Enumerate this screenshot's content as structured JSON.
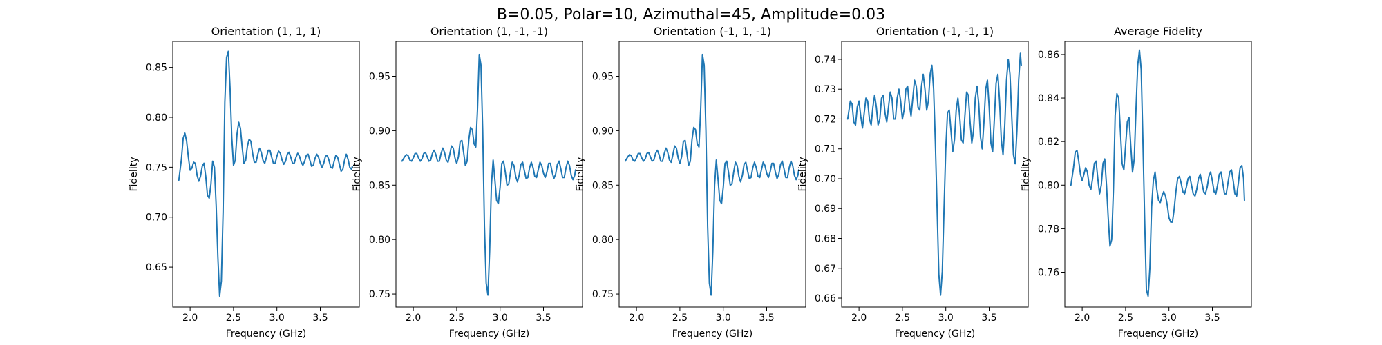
{
  "figure": {
    "suptitle": "B=0.05, Polar=10, Azimuthal=45, Amplitude=0.03"
  },
  "chart_data": [
    {
      "type": "line",
      "title": "Orientation (1, 1, 1)",
      "xlabel": "Frequency (GHz)",
      "ylabel": "Fidelity",
      "xlim": [
        1.8,
        3.95
      ],
      "ylim": [
        0.61,
        0.876
      ],
      "xticks": [
        "2.0",
        "2.5",
        "3.0",
        "3.5"
      ],
      "yticks": [
        "0.65",
        "0.70",
        "0.75",
        "0.80",
        "0.85"
      ],
      "color": "#1f77b4",
      "x": [
        1.87,
        1.9,
        1.92,
        1.94,
        1.96,
        1.98,
        2.0,
        2.02,
        2.04,
        2.06,
        2.08,
        2.1,
        2.12,
        2.14,
        2.16,
        2.18,
        2.2,
        2.22,
        2.24,
        2.26,
        2.28,
        2.3,
        2.32,
        2.34,
        2.36,
        2.38,
        2.4,
        2.42,
        2.44,
        2.46,
        2.48,
        2.5,
        2.52,
        2.54,
        2.56,
        2.58,
        2.6,
        2.62,
        2.64,
        2.66,
        2.68,
        2.7,
        2.72,
        2.74,
        2.76,
        2.78,
        2.8,
        2.82,
        2.84,
        2.86,
        2.88,
        2.9,
        2.92,
        2.94,
        2.96,
        2.98,
        3.0,
        3.02,
        3.04,
        3.06,
        3.08,
        3.1,
        3.12,
        3.14,
        3.16,
        3.18,
        3.2,
        3.22,
        3.24,
        3.26,
        3.28,
        3.3,
        3.32,
        3.34,
        3.36,
        3.38,
        3.4,
        3.42,
        3.44,
        3.46,
        3.48,
        3.5,
        3.52,
        3.54,
        3.56,
        3.58,
        3.6,
        3.62,
        3.64,
        3.66,
        3.68,
        3.7,
        3.72,
        3.74,
        3.76,
        3.78,
        3.8,
        3.82,
        3.84,
        3.86,
        3.87
      ],
      "y": [
        0.737,
        0.758,
        0.779,
        0.784,
        0.776,
        0.76,
        0.747,
        0.749,
        0.755,
        0.754,
        0.742,
        0.736,
        0.741,
        0.751,
        0.754,
        0.741,
        0.722,
        0.719,
        0.733,
        0.756,
        0.75,
        0.712,
        0.66,
        0.621,
        0.636,
        0.705,
        0.815,
        0.86,
        0.866,
        0.83,
        0.78,
        0.752,
        0.757,
        0.783,
        0.795,
        0.789,
        0.77,
        0.754,
        0.757,
        0.771,
        0.778,
        0.776,
        0.764,
        0.755,
        0.755,
        0.763,
        0.769,
        0.765,
        0.757,
        0.754,
        0.76,
        0.767,
        0.767,
        0.76,
        0.754,
        0.754,
        0.761,
        0.766,
        0.764,
        0.757,
        0.753,
        0.756,
        0.763,
        0.765,
        0.76,
        0.754,
        0.754,
        0.76,
        0.764,
        0.761,
        0.755,
        0.752,
        0.756,
        0.762,
        0.763,
        0.757,
        0.751,
        0.752,
        0.759,
        0.763,
        0.76,
        0.754,
        0.75,
        0.754,
        0.761,
        0.762,
        0.757,
        0.75,
        0.749,
        0.756,
        0.762,
        0.76,
        0.753,
        0.746,
        0.748,
        0.757,
        0.763,
        0.758,
        0.75,
        0.748,
        0.751
      ]
    },
    {
      "type": "line",
      "title": "Orientation (1, -1, -1)",
      "xlabel": "Frequency (GHz)",
      "ylabel": "Fidelity",
      "xlim": [
        1.8,
        3.95
      ],
      "ylim": [
        0.738,
        0.982
      ],
      "xticks": [
        "2.0",
        "2.5",
        "3.0",
        "3.5"
      ],
      "yticks": [
        "0.75",
        "0.80",
        "0.85",
        "0.90",
        "0.95"
      ],
      "color": "#1f77b4",
      "x": [
        1.87,
        1.9,
        1.92,
        1.94,
        1.96,
        1.98,
        2.0,
        2.02,
        2.04,
        2.06,
        2.08,
        2.1,
        2.12,
        2.14,
        2.16,
        2.18,
        2.2,
        2.22,
        2.24,
        2.26,
        2.28,
        2.3,
        2.32,
        2.34,
        2.36,
        2.38,
        2.4,
        2.42,
        2.44,
        2.46,
        2.48,
        2.5,
        2.52,
        2.54,
        2.56,
        2.58,
        2.6,
        2.62,
        2.64,
        2.66,
        2.68,
        2.7,
        2.72,
        2.74,
        2.76,
        2.78,
        2.8,
        2.82,
        2.84,
        2.86,
        2.88,
        2.9,
        2.92,
        2.94,
        2.96,
        2.98,
        3.0,
        3.02,
        3.04,
        3.06,
        3.08,
        3.1,
        3.12,
        3.14,
        3.16,
        3.18,
        3.2,
        3.22,
        3.24,
        3.26,
        3.28,
        3.3,
        3.32,
        3.34,
        3.36,
        3.38,
        3.4,
        3.42,
        3.44,
        3.46,
        3.48,
        3.5,
        3.52,
        3.54,
        3.56,
        3.58,
        3.6,
        3.62,
        3.64,
        3.66,
        3.68,
        3.7,
        3.72,
        3.74,
        3.76,
        3.78,
        3.8,
        3.82,
        3.84,
        3.86,
        3.87
      ],
      "y": [
        0.872,
        0.876,
        0.878,
        0.877,
        0.873,
        0.872,
        0.875,
        0.879,
        0.879,
        0.875,
        0.872,
        0.874,
        0.879,
        0.88,
        0.876,
        0.872,
        0.873,
        0.879,
        0.882,
        0.878,
        0.872,
        0.872,
        0.879,
        0.884,
        0.88,
        0.873,
        0.871,
        0.878,
        0.886,
        0.884,
        0.875,
        0.87,
        0.876,
        0.89,
        0.891,
        0.88,
        0.868,
        0.872,
        0.892,
        0.903,
        0.901,
        0.888,
        0.885,
        0.92,
        0.97,
        0.96,
        0.9,
        0.812,
        0.76,
        0.749,
        0.79,
        0.85,
        0.873,
        0.855,
        0.836,
        0.833,
        0.848,
        0.87,
        0.872,
        0.862,
        0.85,
        0.851,
        0.862,
        0.871,
        0.868,
        0.858,
        0.853,
        0.859,
        0.869,
        0.871,
        0.863,
        0.856,
        0.857,
        0.866,
        0.871,
        0.866,
        0.858,
        0.857,
        0.864,
        0.871,
        0.868,
        0.861,
        0.857,
        0.862,
        0.87,
        0.87,
        0.862,
        0.856,
        0.86,
        0.869,
        0.872,
        0.865,
        0.857,
        0.857,
        0.866,
        0.872,
        0.868,
        0.859,
        0.855,
        0.859,
        0.864
      ]
    },
    {
      "type": "line",
      "title": "Orientation (-1, 1, -1)",
      "xlabel": "Frequency (GHz)",
      "ylabel": "Fidelity",
      "xlim": [
        1.8,
        3.95
      ],
      "ylim": [
        0.738,
        0.982
      ],
      "xticks": [
        "2.0",
        "2.5",
        "3.0",
        "3.5"
      ],
      "yticks": [
        "0.75",
        "0.80",
        "0.85",
        "0.90",
        "0.95"
      ],
      "color": "#1f77b4",
      "x": [
        1.87,
        1.9,
        1.92,
        1.94,
        1.96,
        1.98,
        2.0,
        2.02,
        2.04,
        2.06,
        2.08,
        2.1,
        2.12,
        2.14,
        2.16,
        2.18,
        2.2,
        2.22,
        2.24,
        2.26,
        2.28,
        2.3,
        2.32,
        2.34,
        2.36,
        2.38,
        2.4,
        2.42,
        2.44,
        2.46,
        2.48,
        2.5,
        2.52,
        2.54,
        2.56,
        2.58,
        2.6,
        2.62,
        2.64,
        2.66,
        2.68,
        2.7,
        2.72,
        2.74,
        2.76,
        2.78,
        2.8,
        2.82,
        2.84,
        2.86,
        2.88,
        2.9,
        2.92,
        2.94,
        2.96,
        2.98,
        3.0,
        3.02,
        3.04,
        3.06,
        3.08,
        3.1,
        3.12,
        3.14,
        3.16,
        3.18,
        3.2,
        3.22,
        3.24,
        3.26,
        3.28,
        3.3,
        3.32,
        3.34,
        3.36,
        3.38,
        3.4,
        3.42,
        3.44,
        3.46,
        3.48,
        3.5,
        3.52,
        3.54,
        3.56,
        3.58,
        3.6,
        3.62,
        3.64,
        3.66,
        3.68,
        3.7,
        3.72,
        3.74,
        3.76,
        3.78,
        3.8,
        3.82,
        3.84,
        3.86,
        3.87
      ],
      "y": [
        0.872,
        0.876,
        0.878,
        0.877,
        0.873,
        0.872,
        0.875,
        0.879,
        0.879,
        0.875,
        0.872,
        0.874,
        0.879,
        0.88,
        0.876,
        0.872,
        0.873,
        0.879,
        0.882,
        0.878,
        0.872,
        0.872,
        0.879,
        0.884,
        0.88,
        0.873,
        0.871,
        0.878,
        0.886,
        0.884,
        0.875,
        0.87,
        0.876,
        0.89,
        0.891,
        0.88,
        0.868,
        0.872,
        0.892,
        0.903,
        0.901,
        0.888,
        0.885,
        0.92,
        0.97,
        0.96,
        0.9,
        0.812,
        0.76,
        0.749,
        0.79,
        0.85,
        0.873,
        0.855,
        0.836,
        0.833,
        0.848,
        0.87,
        0.872,
        0.862,
        0.85,
        0.851,
        0.862,
        0.871,
        0.868,
        0.858,
        0.853,
        0.859,
        0.869,
        0.871,
        0.863,
        0.856,
        0.857,
        0.866,
        0.871,
        0.866,
        0.858,
        0.857,
        0.864,
        0.871,
        0.868,
        0.861,
        0.857,
        0.862,
        0.87,
        0.87,
        0.862,
        0.856,
        0.86,
        0.869,
        0.872,
        0.865,
        0.857,
        0.857,
        0.866,
        0.872,
        0.868,
        0.859,
        0.855,
        0.859,
        0.864
      ]
    },
    {
      "type": "line",
      "title": "Orientation (-1, -1, 1)",
      "xlabel": "Frequency (GHz)",
      "ylabel": "Fidelity",
      "xlim": [
        1.8,
        3.95
      ],
      "ylim": [
        0.657,
        0.746
      ],
      "xticks": [
        "2.0",
        "2.5",
        "3.0",
        "3.5"
      ],
      "yticks": [
        "0.66",
        "0.67",
        "0.68",
        "0.69",
        "0.70",
        "0.71",
        "0.72",
        "0.73",
        "0.74"
      ],
      "color": "#1f77b4",
      "x": [
        1.87,
        1.9,
        1.92,
        1.94,
        1.96,
        1.98,
        2.0,
        2.02,
        2.04,
        2.06,
        2.08,
        2.1,
        2.12,
        2.14,
        2.16,
        2.18,
        2.2,
        2.22,
        2.24,
        2.26,
        2.28,
        2.3,
        2.32,
        2.34,
        2.36,
        2.38,
        2.4,
        2.42,
        2.44,
        2.46,
        2.48,
        2.5,
        2.52,
        2.54,
        2.56,
        2.58,
        2.6,
        2.62,
        2.64,
        2.66,
        2.68,
        2.7,
        2.72,
        2.74,
        2.76,
        2.78,
        2.8,
        2.82,
        2.84,
        2.86,
        2.88,
        2.9,
        2.92,
        2.94,
        2.96,
        2.98,
        3.0,
        3.02,
        3.04,
        3.06,
        3.08,
        3.1,
        3.12,
        3.14,
        3.16,
        3.18,
        3.2,
        3.22,
        3.24,
        3.26,
        3.28,
        3.3,
        3.32,
        3.34,
        3.36,
        3.38,
        3.4,
        3.42,
        3.44,
        3.46,
        3.48,
        3.5,
        3.52,
        3.54,
        3.56,
        3.58,
        3.6,
        3.62,
        3.64,
        3.66,
        3.68,
        3.7,
        3.72,
        3.74,
        3.76,
        3.78,
        3.8,
        3.82,
        3.84,
        3.86,
        3.87
      ],
      "y": [
        0.72,
        0.726,
        0.725,
        0.719,
        0.718,
        0.724,
        0.726,
        0.721,
        0.717,
        0.722,
        0.727,
        0.726,
        0.72,
        0.718,
        0.724,
        0.728,
        0.724,
        0.718,
        0.72,
        0.727,
        0.728,
        0.722,
        0.719,
        0.724,
        0.729,
        0.727,
        0.72,
        0.72,
        0.727,
        0.73,
        0.726,
        0.72,
        0.723,
        0.73,
        0.731,
        0.725,
        0.721,
        0.727,
        0.733,
        0.731,
        0.724,
        0.723,
        0.731,
        0.735,
        0.73,
        0.723,
        0.726,
        0.735,
        0.738,
        0.73,
        0.712,
        0.69,
        0.668,
        0.661,
        0.669,
        0.69,
        0.71,
        0.722,
        0.723,
        0.716,
        0.709,
        0.713,
        0.723,
        0.727,
        0.721,
        0.713,
        0.712,
        0.721,
        0.729,
        0.728,
        0.719,
        0.712,
        0.716,
        0.727,
        0.731,
        0.725,
        0.714,
        0.71,
        0.719,
        0.73,
        0.733,
        0.724,
        0.712,
        0.709,
        0.72,
        0.732,
        0.735,
        0.726,
        0.713,
        0.708,
        0.718,
        0.733,
        0.74,
        0.735,
        0.721,
        0.708,
        0.705,
        0.716,
        0.733,
        0.742,
        0.738
      ]
    },
    {
      "type": "line",
      "title": "Average Fidelity",
      "xlabel": "Frequency (GHz)",
      "ylabel": "Fidelity",
      "xlim": [
        1.8,
        3.95
      ],
      "ylim": [
        0.744,
        0.866
      ],
      "xticks": [
        "2.0",
        "2.5",
        "3.0",
        "3.5"
      ],
      "yticks": [
        "0.76",
        "0.78",
        "0.80",
        "0.82",
        "0.84",
        "0.86"
      ],
      "color": "#1f77b4",
      "x": [
        1.87,
        1.9,
        1.92,
        1.94,
        1.96,
        1.98,
        2.0,
        2.02,
        2.04,
        2.06,
        2.08,
        2.1,
        2.12,
        2.14,
        2.16,
        2.18,
        2.2,
        2.22,
        2.24,
        2.26,
        2.28,
        2.3,
        2.32,
        2.34,
        2.36,
        2.38,
        2.4,
        2.42,
        2.44,
        2.46,
        2.48,
        2.5,
        2.52,
        2.54,
        2.56,
        2.58,
        2.6,
        2.62,
        2.64,
        2.66,
        2.68,
        2.7,
        2.72,
        2.74,
        2.76,
        2.78,
        2.8,
        2.82,
        2.84,
        2.86,
        2.88,
        2.9,
        2.92,
        2.94,
        2.96,
        2.98,
        3.0,
        3.02,
        3.04,
        3.06,
        3.08,
        3.1,
        3.12,
        3.14,
        3.16,
        3.18,
        3.2,
        3.22,
        3.24,
        3.26,
        3.28,
        3.3,
        3.32,
        3.34,
        3.36,
        3.38,
        3.4,
        3.42,
        3.44,
        3.46,
        3.48,
        3.5,
        3.52,
        3.54,
        3.56,
        3.58,
        3.6,
        3.62,
        3.64,
        3.66,
        3.68,
        3.7,
        3.72,
        3.74,
        3.76,
        3.78,
        3.8,
        3.82,
        3.84,
        3.86,
        3.87
      ],
      "y": [
        0.8,
        0.808,
        0.815,
        0.816,
        0.811,
        0.805,
        0.802,
        0.805,
        0.808,
        0.806,
        0.8,
        0.798,
        0.803,
        0.81,
        0.811,
        0.803,
        0.796,
        0.8,
        0.81,
        0.812,
        0.8,
        0.785,
        0.772,
        0.775,
        0.798,
        0.832,
        0.842,
        0.84,
        0.825,
        0.81,
        0.807,
        0.818,
        0.829,
        0.831,
        0.818,
        0.806,
        0.812,
        0.835,
        0.855,
        0.862,
        0.853,
        0.82,
        0.784,
        0.752,
        0.749,
        0.762,
        0.79,
        0.802,
        0.806,
        0.798,
        0.793,
        0.792,
        0.795,
        0.797,
        0.795,
        0.791,
        0.785,
        0.783,
        0.783,
        0.789,
        0.797,
        0.803,
        0.804,
        0.801,
        0.797,
        0.796,
        0.799,
        0.803,
        0.804,
        0.8,
        0.796,
        0.795,
        0.798,
        0.803,
        0.805,
        0.801,
        0.797,
        0.796,
        0.799,
        0.804,
        0.806,
        0.802,
        0.797,
        0.796,
        0.8,
        0.805,
        0.806,
        0.801,
        0.796,
        0.796,
        0.801,
        0.806,
        0.807,
        0.802,
        0.796,
        0.795,
        0.801,
        0.808,
        0.809,
        0.803,
        0.793
      ]
    }
  ]
}
